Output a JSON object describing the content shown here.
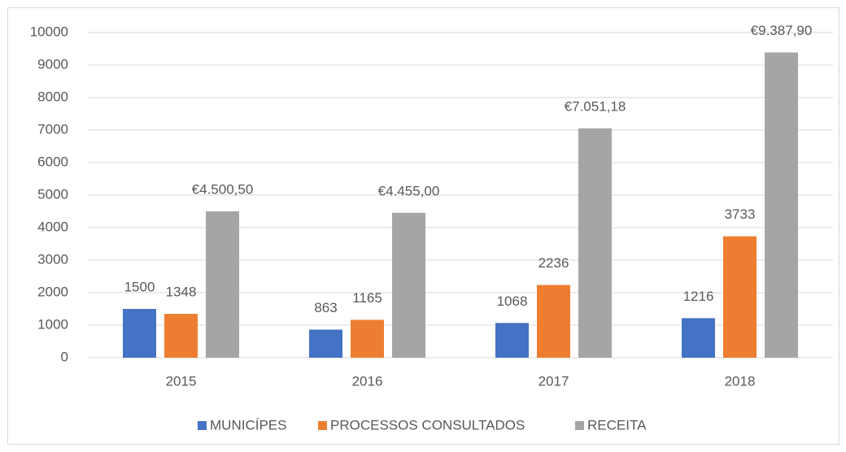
{
  "chart_data": {
    "type": "bar",
    "categories": [
      "2015",
      "2016",
      "2017",
      "2018"
    ],
    "series": [
      {
        "name": "MUNICÍPES",
        "color": "#4472c4",
        "values": [
          1500,
          863,
          1068,
          1216
        ]
      },
      {
        "name": "PROCESSOS CONSULTADOS",
        "color": "#ed7d31",
        "values": [
          1348,
          1165,
          2236,
          3733
        ]
      },
      {
        "name": "RECEITA",
        "color": "#a5a5a5",
        "values": [
          4500.5,
          4455,
          7051.18,
          9387.9
        ],
        "value_labels": [
          "€4.500,50",
          "€4.455,00",
          "€7.051,18",
          "€9.387,90"
        ]
      }
    ],
    "ylim": [
      0,
      10000
    ],
    "yticks": [
      0,
      1000,
      2000,
      3000,
      4000,
      5000,
      6000,
      7000,
      8000,
      9000,
      10000
    ],
    "grid": true,
    "legend": "bottom"
  }
}
